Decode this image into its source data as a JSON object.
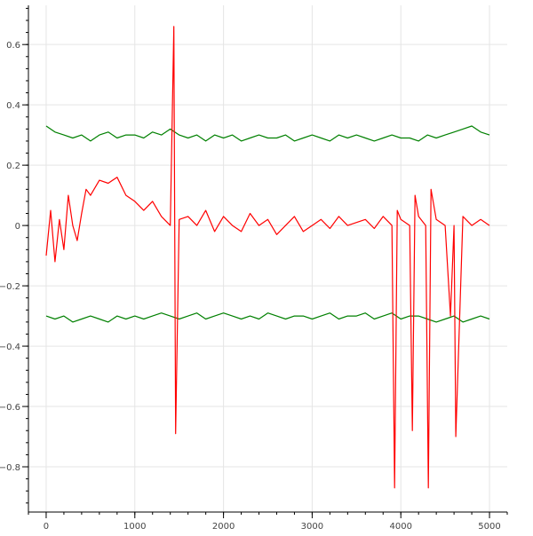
{
  "chart_data": {
    "type": "line",
    "title": "",
    "xlabel": "",
    "ylabel": "",
    "xlim": [
      -200,
      5200
    ],
    "ylim": [
      -0.95,
      0.73
    ],
    "x_ticks": [
      0,
      1000,
      2000,
      3000,
      4000,
      5000
    ],
    "x_tick_labels": [
      "0",
      "1000",
      "2000",
      "3000",
      "4000",
      "5000"
    ],
    "y_ticks": [
      0.6,
      0.4,
      0.2,
      0,
      -0.2,
      -0.4,
      -0.6,
      -0.8
    ],
    "y_tick_labels": [
      "0.6",
      "0.4",
      "0.2",
      "0",
      "−0.2",
      "−0.4",
      "−0.6",
      "−0.8"
    ],
    "grid": true,
    "legend": "none",
    "series": [
      {
        "color": "#008000",
        "x": [
          0,
          100,
          200,
          300,
          400,
          500,
          600,
          700,
          800,
          900,
          1000,
          1100,
          1200,
          1300,
          1400,
          1500,
          1600,
          1700,
          1800,
          1900,
          2000,
          2100,
          2200,
          2300,
          2400,
          2500,
          2600,
          2700,
          2800,
          2900,
          3000,
          3100,
          3200,
          3300,
          3400,
          3500,
          3600,
          3700,
          3800,
          3900,
          4000,
          4100,
          4200,
          4300,
          4400,
          4500,
          4600,
          4700,
          4800,
          4900,
          5000
        ],
        "values": [
          0.33,
          0.31,
          0.3,
          0.29,
          0.3,
          0.28,
          0.3,
          0.31,
          0.29,
          0.3,
          0.3,
          0.29,
          0.31,
          0.3,
          0.32,
          0.3,
          0.29,
          0.3,
          0.28,
          0.3,
          0.29,
          0.3,
          0.28,
          0.29,
          0.3,
          0.29,
          0.29,
          0.3,
          0.28,
          0.29,
          0.3,
          0.29,
          0.28,
          0.3,
          0.29,
          0.3,
          0.29,
          0.28,
          0.29,
          0.3,
          0.29,
          0.29,
          0.28,
          0.3,
          0.29,
          0.3,
          0.31,
          0.32,
          0.33,
          0.31,
          0.3
        ]
      },
      {
        "color": "#008000",
        "x": [
          0,
          100,
          200,
          300,
          400,
          500,
          600,
          700,
          800,
          900,
          1000,
          1100,
          1200,
          1300,
          1400,
          1500,
          1600,
          1700,
          1800,
          1900,
          2000,
          2100,
          2200,
          2300,
          2400,
          2500,
          2600,
          2700,
          2800,
          2900,
          3000,
          3100,
          3200,
          3300,
          3400,
          3500,
          3600,
          3700,
          3800,
          3900,
          4000,
          4100,
          4200,
          4300,
          4400,
          4500,
          4600,
          4700,
          4800,
          4900,
          5000
        ],
        "values": [
          -0.3,
          -0.31,
          -0.3,
          -0.32,
          -0.31,
          -0.3,
          -0.31,
          -0.32,
          -0.3,
          -0.31,
          -0.3,
          -0.31,
          -0.3,
          -0.29,
          -0.3,
          -0.31,
          -0.3,
          -0.29,
          -0.31,
          -0.3,
          -0.29,
          -0.3,
          -0.31,
          -0.3,
          -0.31,
          -0.29,
          -0.3,
          -0.31,
          -0.3,
          -0.3,
          -0.31,
          -0.3,
          -0.29,
          -0.31,
          -0.3,
          -0.3,
          -0.29,
          -0.31,
          -0.3,
          -0.29,
          -0.31,
          -0.3,
          -0.3,
          -0.31,
          -0.32,
          -0.31,
          -0.3,
          -0.32,
          -0.31,
          -0.3,
          -0.31
        ]
      },
      {
        "color": "#ff0000",
        "x": [
          0,
          50,
          100,
          150,
          200,
          250,
          300,
          350,
          400,
          450,
          500,
          600,
          700,
          800,
          900,
          1000,
          1100,
          1200,
          1300,
          1400,
          1440,
          1460,
          1500,
          1600,
          1700,
          1800,
          1900,
          2000,
          2100,
          2200,
          2300,
          2400,
          2500,
          2600,
          2700,
          2800,
          2900,
          3000,
          3100,
          3200,
          3300,
          3400,
          3500,
          3600,
          3700,
          3800,
          3900,
          3930,
          3960,
          4000,
          4100,
          4130,
          4160,
          4200,
          4280,
          4310,
          4340,
          4400,
          4500,
          4560,
          4600,
          4620,
          4700,
          4800,
          4900,
          5000
        ],
        "values": [
          -0.1,
          0.05,
          -0.12,
          0.02,
          -0.08,
          0.1,
          0.0,
          -0.05,
          0.04,
          0.12,
          0.1,
          0.15,
          0.14,
          0.16,
          0.1,
          0.08,
          0.05,
          0.08,
          0.03,
          0.0,
          0.66,
          -0.69,
          0.02,
          0.03,
          0.0,
          0.05,
          -0.02,
          0.03,
          0.0,
          -0.02,
          0.04,
          0.0,
          0.02,
          -0.03,
          0.0,
          0.03,
          -0.02,
          0.0,
          0.02,
          -0.01,
          0.03,
          0.0,
          0.01,
          0.02,
          -0.01,
          0.03,
          0.0,
          -0.87,
          0.05,
          0.02,
          0.0,
          -0.68,
          0.1,
          0.03,
          0.0,
          -0.87,
          0.12,
          0.02,
          0.0,
          -0.3,
          0.0,
          -0.7,
          0.03,
          0.0,
          0.02,
          0.0
        ]
      }
    ]
  }
}
